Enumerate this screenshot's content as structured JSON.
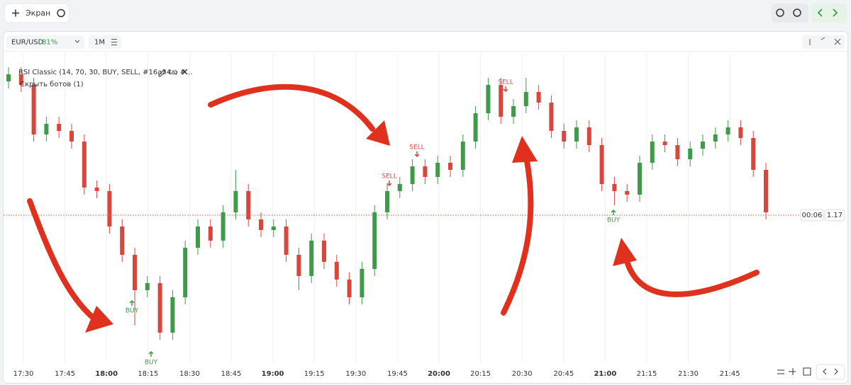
{
  "toolbar": {
    "add_screen": "Экран"
  },
  "panel": {
    "symbol": "EUR/USD",
    "payout": "81%",
    "timeframe": "1M",
    "indicator": "RSI Classic (14, 70, 30, BUY, SELL, #16a34a, #...",
    "hide_bots": "Скрыть ботов (1)",
    "timer": "00:06",
    "signals": [
      "BUY",
      "BUY",
      "SELL",
      "SELL",
      "SELL",
      "BUY"
    ]
  },
  "chart_data": {
    "type": "candlestick",
    "up_color": "#3f9a4a",
    "down_color": "#d9473c",
    "ylim": [
      1.16792,
      1.17229
    ],
    "yticks": [
      1.17
    ],
    "x_labels": [
      "17:30",
      "17:45",
      "18:00",
      "18:15",
      "18:30",
      "18:45",
      "19:00",
      "19:15",
      "19:30",
      "19:45",
      "20:00",
      "20:15",
      "20:30",
      "20:45",
      "21:00",
      "21:15",
      "21:30",
      "21:45"
    ],
    "open": [
      1.17189,
      1.17199,
      1.17184,
      1.17114,
      1.17129,
      1.17119,
      1.17104,
      1.17039,
      1.17034,
      1.16984,
      1.16944,
      1.16894,
      1.16904,
      1.16834,
      1.16884,
      1.16954,
      1.16984,
      1.16964,
      1.17004,
      1.17034,
      1.16994,
      1.16979,
      1.16984,
      1.16944,
      1.16914,
      1.16964,
      1.16934,
      1.16909,
      1.16884,
      1.16924,
      1.17004,
      1.17034,
      1.17044,
      1.17069,
      1.17054,
      1.17074,
      1.17064,
      1.17104,
      1.17144,
      1.17184,
      1.17139,
      1.17154,
      1.17174,
      1.17159,
      1.17119,
      1.17104,
      1.17124,
      1.17099,
      1.17044,
      1.17034,
      1.17029,
      1.17074,
      1.17104,
      1.17099,
      1.17079,
      1.17094,
      1.17104,
      1.17114,
      1.17124,
      1.17109,
      1.17064
    ],
    "high": [
      1.17209,
      1.17209,
      1.17194,
      1.17139,
      1.17139,
      1.17129,
      1.17114,
      1.17049,
      1.17044,
      1.16994,
      1.16954,
      1.16914,
      1.16914,
      1.16894,
      1.16964,
      1.16994,
      1.16994,
      1.17014,
      1.17064,
      1.17044,
      1.17004,
      1.16994,
      1.16994,
      1.16954,
      1.16974,
      1.16974,
      1.16944,
      1.16919,
      1.16934,
      1.17014,
      1.17044,
      1.17054,
      1.17079,
      1.17079,
      1.17084,
      1.17084,
      1.17114,
      1.17154,
      1.17194,
      1.17194,
      1.17164,
      1.17194,
      1.17184,
      1.17169,
      1.17129,
      1.17134,
      1.17134,
      1.17109,
      1.17054,
      1.17044,
      1.17084,
      1.17114,
      1.17114,
      1.17109,
      1.17104,
      1.17114,
      1.17124,
      1.17134,
      1.17134,
      1.17119,
      1.17074
    ],
    "low": [
      1.17179,
      1.17174,
      1.17104,
      1.17104,
      1.17109,
      1.17094,
      1.17029,
      1.17024,
      1.16974,
      1.16934,
      1.16844,
      1.16884,
      1.16824,
      1.16824,
      1.16874,
      1.16944,
      1.16954,
      1.16954,
      1.16994,
      1.16984,
      1.16969,
      1.16969,
      1.16934,
      1.16894,
      1.16904,
      1.16924,
      1.16899,
      1.16874,
      1.16874,
      1.16914,
      1.16994,
      1.17024,
      1.17034,
      1.17044,
      1.17044,
      1.17054,
      1.17054,
      1.17094,
      1.17134,
      1.17129,
      1.17129,
      1.17144,
      1.17149,
      1.17109,
      1.17094,
      1.17094,
      1.17089,
      1.17034,
      1.17014,
      1.17019,
      1.17019,
      1.17064,
      1.17089,
      1.17069,
      1.17069,
      1.17084,
      1.17094,
      1.17104,
      1.17099,
      1.17054,
      1.16994
    ],
    "close": [
      1.17199,
      1.17184,
      1.17114,
      1.17129,
      1.17119,
      1.17104,
      1.17039,
      1.17034,
      1.16984,
      1.16944,
      1.16894,
      1.16904,
      1.16834,
      1.16884,
      1.16954,
      1.16984,
      1.16964,
      1.17004,
      1.17034,
      1.16994,
      1.16979,
      1.16984,
      1.16944,
      1.16914,
      1.16964,
      1.16934,
      1.16909,
      1.16884,
      1.16924,
      1.17004,
      1.17034,
      1.17044,
      1.17069,
      1.17054,
      1.17074,
      1.17064,
      1.17104,
      1.17144,
      1.17184,
      1.17139,
      1.17154,
      1.17174,
      1.17159,
      1.17119,
      1.17104,
      1.17124,
      1.17099,
      1.17044,
      1.17034,
      1.17029,
      1.17074,
      1.17104,
      1.17099,
      1.17079,
      1.17094,
      1.17104,
      1.17114,
      1.17124,
      1.17109,
      1.17064,
      1.17004
    ]
  }
}
